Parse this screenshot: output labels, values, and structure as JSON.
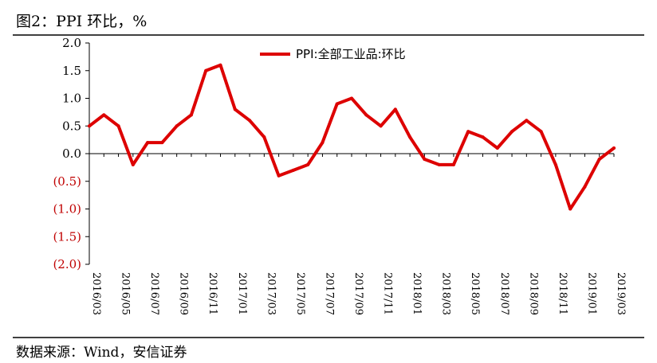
{
  "figure": {
    "title": "图2：PPI 环比，%",
    "source": "数据来源：Wind，安信证券"
  },
  "colors": {
    "series": "#dd0000",
    "negative_tick": "#c00000",
    "axis": "#000000"
  },
  "chart_data": {
    "type": "line",
    "title": "图2：PPI 环比，%",
    "xlabel": "",
    "ylabel": "",
    "ylim": [
      -2.0,
      2.0
    ],
    "grid": false,
    "legend_position": "top-center",
    "y_ticks": [
      "2.0",
      "1.5",
      "1.0",
      "0.5",
      "0.0",
      "(0.5)",
      "(1.0)",
      "(1.5)",
      "(2.0)"
    ],
    "x_tick_labels": [
      "2016/03",
      "2016/05",
      "2016/07",
      "2016/09",
      "2016/11",
      "2017/01",
      "2017/03",
      "2017/05",
      "2017/07",
      "2017/09",
      "2017/11",
      "2018/01",
      "2018/03",
      "2018/05",
      "2018/07",
      "2018/09",
      "2018/11",
      "2019/01",
      "2019/03"
    ],
    "x": [
      "2016/03",
      "2016/04",
      "2016/05",
      "2016/06",
      "2016/07",
      "2016/08",
      "2016/09",
      "2016/10",
      "2016/11",
      "2016/12",
      "2017/01",
      "2017/02",
      "2017/03",
      "2017/04",
      "2017/05",
      "2017/06",
      "2017/07",
      "2017/08",
      "2017/09",
      "2017/10",
      "2017/11",
      "2017/12",
      "2018/01",
      "2018/02",
      "2018/03",
      "2018/04",
      "2018/05",
      "2018/06",
      "2018/07",
      "2018/08",
      "2018/09",
      "2018/10",
      "2018/11",
      "2018/12",
      "2019/01",
      "2019/02",
      "2019/03"
    ],
    "series": [
      {
        "name": "PPI:全部工业品:环比",
        "values": [
          0.5,
          0.7,
          0.5,
          -0.2,
          0.2,
          0.2,
          0.5,
          0.7,
          1.5,
          1.6,
          0.8,
          0.6,
          0.3,
          -0.4,
          -0.3,
          -0.2,
          0.2,
          0.9,
          1.0,
          0.7,
          0.5,
          0.8,
          0.3,
          -0.1,
          -0.2,
          -0.2,
          0.4,
          0.3,
          0.1,
          0.4,
          0.6,
          0.4,
          -0.2,
          -1.0,
          -0.6,
          -0.1,
          0.1
        ]
      }
    ]
  }
}
